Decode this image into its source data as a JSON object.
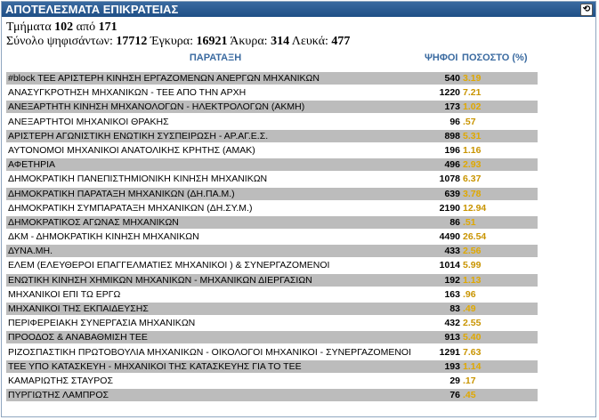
{
  "title": "ΑΠΟΤΕΛΕΣΜΑΤΑ ΕΠΙΚΡΑΤΕΙΑΣ",
  "summary": {
    "sections_label": "Τμήματα",
    "sections_counted": "102",
    "of_label": "από",
    "sections_total": "171",
    "voters_label": "Σύνολο ψηφισάντων:",
    "voters": "17712",
    "valid_label": "Έγκυρα:",
    "valid": "16921",
    "invalid_label": "Άκυρα:",
    "invalid": "314",
    "blank_label": "Λευκά:",
    "blank": "477"
  },
  "headers": {
    "party": "ΠΑΡΑΤΑΞΗ",
    "votes": "ΨΗΦΟΙ",
    "percent": "ΠΟΣΟΣΤΟ (%)"
  },
  "rows": [
    {
      "name": "#block ΤΕΕ ΑΡΙΣΤΕΡΗ ΚΙΝΗΣΗ ΕΡΓΑΖΟΜΕΝΩΝ ΑΝΕΡΓΩΝ ΜΗΧΑΝΙΚΩΝ",
      "votes": "540",
      "pct": "3.19"
    },
    {
      "name": "ΑΝΑΣΥΓΚΡΟΤΗΣΗ ΜΗΧΑΝΙΚΩΝ - ΤΕΕ ΑΠΟ ΤΗΝ ΑΡΧΗ",
      "votes": "1220",
      "pct": "7.21"
    },
    {
      "name": "ΑΝΕΞΑΡΤΗΤΗ ΚΙΝΗΣΗ ΜΗΧΑΝΟΛΟΓΩΝ - ΗΛΕΚΤΡΟΛΟΓΩΝ (ΑΚΜΗ)",
      "votes": "173",
      "pct": "1.02"
    },
    {
      "name": "ΑΝΕΞΑΡΤΗΤΟΙ ΜΗΧΑΝΙΚΟΙ ΘΡΑΚΗΣ",
      "votes": "96",
      "pct": ".57"
    },
    {
      "name": "ΑΡΙΣΤΕΡΗ ΑΓΩΝΙΣΤΙΚΗ ΕΝΩΤΙΚΗ ΣΥΣΠΕΙΡΩΣΗ - ΑΡ.ΑΓ.Ε.Σ.",
      "votes": "898",
      "pct": "5.31"
    },
    {
      "name": "ΑΥΤΟΝΟΜΟΙ ΜΗΧΑΝΙΚΟΙ ΑΝΑΤΟΛΙΚΗΣ ΚΡΗΤΗΣ (ΑΜΑΚ)",
      "votes": "196",
      "pct": "1.16"
    },
    {
      "name": "ΑΦΕΤΗΡΙΑ",
      "votes": "496",
      "pct": "2.93"
    },
    {
      "name": "ΔΗΜΟΚΡΑΤΙΚΗ ΠΑΝΕΠΙΣΤΗΜΙΟΝΙΚΗ ΚΙΝΗΣΗ ΜΗΧΑΝΙΚΩΝ",
      "votes": "1078",
      "pct": "6.37"
    },
    {
      "name": "ΔΗΜΟΚΡΑΤΙΚΗ ΠΑΡΑΤΑΞΗ ΜΗΧΑΝΙΚΩΝ (ΔΗ.ΠΑ.Μ.)",
      "votes": "639",
      "pct": "3.78"
    },
    {
      "name": "ΔΗΜΟΚΡΑΤΙΚΗ ΣΥΜΠΑΡΑΤΑΞΗ ΜΗΧΑΝΙΚΩΝ (ΔΗ.ΣΥ.Μ.)",
      "votes": "2190",
      "pct": "12.94"
    },
    {
      "name": "ΔΗΜΟΚΡΑΤΙΚΟΣ ΑΓΩΝΑΣ ΜΗΧΑΝΙΚΩΝ",
      "votes": "86",
      "pct": ".51"
    },
    {
      "name": "ΔΚΜ - ΔΗΜΟΚΡΑΤΙΚΗ ΚΙΝΗΣΗ ΜΗΧΑΝΙΚΩΝ",
      "votes": "4490",
      "pct": "26.54"
    },
    {
      "name": "ΔΥΝΑ.ΜΗ.",
      "votes": "433",
      "pct": "2.56"
    },
    {
      "name": "ΕΛΕΜ (ΕΛΕΥΘΕΡΟΙ ΕΠΑΓΓΕΛΜΑΤΙΕΣ ΜΗΧΑΝΙΚΟΙ ) & ΣΥΝΕΡΓΑΖΟΜΕΝΟΙ",
      "votes": "1014",
      "pct": "5.99"
    },
    {
      "name": "ΕΝΩΤΙΚΗ ΚΙΝΗΣΗ ΧΗΜΙΚΩΝ ΜΗΧΑΝΙΚΩΝ - ΜΗΧΑΝΙΚΩΝ ΔΙΕΡΓΑΣΙΩΝ",
      "votes": "192",
      "pct": "1.13"
    },
    {
      "name": "ΜΗΧΑΝΙΚΟΙ ΕΠΙ ΤΩ ΕΡΓΩ",
      "votes": "163",
      "pct": ".96"
    },
    {
      "name": "ΜΗΧΑΝΙΚΟΙ ΤΗΣ ΕΚΠΑΙΔΕΥΣΗΣ",
      "votes": "83",
      "pct": ".49"
    },
    {
      "name": "ΠΕΡΙΦΕΡΕΙΑΚΗ ΣΥΝΕΡΓΑΣΙΑ ΜΗΧΑΝΙΚΩΝ",
      "votes": "432",
      "pct": "2.55"
    },
    {
      "name": "ΠΡΟΟΔΟΣ & ΑΝΑΒΑΘΜΙΣΗ ΤΕΕ",
      "votes": "913",
      "pct": "5.40"
    },
    {
      "name": "ΡΙΖΟΣΠΑΣΤΙΚΗ ΠΡΩΤΟΒΟΥΛΙΑ ΜΗΧΑΝΙΚΩΝ - ΟΙΚΟΛΟΓΟΙ ΜΗΧΑΝΙΚΟΙ - ΣΥΝΕΡΓΑΖΟΜΕΝΟΙ",
      "votes": "1291",
      "pct": "7.63"
    },
    {
      "name": "ΤΕΕ ΥΠΟ ΚΑΤΑΣΚΕΥΗ - ΜΗΧΑΝΙΚΟΙ ΤΗΣ ΚΑΤΑΣΚΕΥΗΣ ΓΙΑ ΤΟ ΤΕΕ",
      "votes": "193",
      "pct": "1.14"
    },
    {
      "name": "ΚΑΜΑΡΙΩΤΗΣ ΣΤΑΥΡΟΣ",
      "votes": "29",
      "pct": ".17"
    },
    {
      "name": "ΠΥΡΓΙΩΤΗΣ ΛΑΜΠΡΟΣ",
      "votes": "76",
      "pct": ".45"
    }
  ]
}
